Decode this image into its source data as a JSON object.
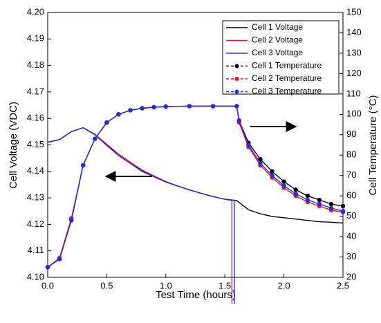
{
  "chart_data": {
    "type": "line",
    "xlabel": "Test Time (hours)",
    "ylabel": "Cell Voltage (VDC)",
    "y2label": "Cell Temperature (°C)",
    "xlim": [
      0,
      2.5
    ],
    "ylim": [
      4.1,
      4.2
    ],
    "y2lim": [
      20,
      150
    ],
    "xticks": [
      {
        "value": 0,
        "label": "0.0"
      },
      {
        "value": 0.5,
        "label": "0.5"
      },
      {
        "value": 1,
        "label": "1.0"
      },
      {
        "value": 1.5,
        "label": "1.5"
      },
      {
        "value": 2,
        "label": "2.0"
      },
      {
        "value": 2.5,
        "label": "2.5"
      }
    ],
    "yticks": [
      {
        "value": 4.1,
        "label": "4.10"
      },
      4.11,
      4.12,
      4.13,
      4.14,
      4.15,
      4.16,
      4.17,
      4.18,
      4.19,
      {
        "value": 4.2,
        "label": "4.20"
      }
    ],
    "y2ticks": [
      20,
      30,
      40,
      50,
      60,
      70,
      80,
      90,
      100,
      110,
      120,
      130,
      140,
      150
    ],
    "legend": "upper right",
    "series": [
      {
        "name": "Cell 1 Voltage",
        "color": "#000000",
        "axis": "y",
        "markers": false,
        "x": [
          0,
          0.1,
          0.2,
          0.3,
          0.4,
          0.5,
          0.6,
          0.7,
          0.8,
          0.9,
          1.0,
          1.1,
          1.2,
          1.3,
          1.4,
          1.5,
          1.6,
          1.7,
          1.8,
          1.9,
          2.0,
          2.1,
          2.2,
          2.3,
          2.4,
          2.5
        ],
        "values": [
          4.151,
          4.152,
          4.155,
          4.1565,
          4.154,
          4.15,
          4.146,
          4.143,
          4.14,
          4.138,
          4.136,
          4.1345,
          4.133,
          4.1317,
          4.1305,
          4.1295,
          4.129,
          4.1255,
          4.124,
          4.123,
          4.1225,
          4.122,
          4.1215,
          4.121,
          4.1208,
          4.1205
        ]
      },
      {
        "name": "Cell 2 Voltage",
        "color": "#e8141c",
        "axis": "y",
        "markers": false,
        "x": [
          0,
          0.1,
          0.2,
          0.3,
          0.4,
          0.5,
          0.6,
          0.7,
          0.8,
          0.9,
          1.0,
          1.1,
          1.2,
          1.3,
          1.4,
          1.5,
          1.56,
          1.56
        ],
        "values": [
          4.151,
          4.152,
          4.155,
          4.1565,
          4.154,
          4.1503,
          4.1465,
          4.1435,
          4.1405,
          4.1383,
          4.1362,
          4.1345,
          4.133,
          4.1317,
          4.1305,
          4.1295,
          4.129,
          4.09
        ]
      },
      {
        "name": "Cell 3 Voltage",
        "color": "#1f2ee0",
        "axis": "y",
        "markers": false,
        "x": [
          0,
          0.1,
          0.2,
          0.3,
          0.4,
          0.5,
          0.6,
          0.7,
          0.8,
          0.9,
          1.0,
          1.1,
          1.2,
          1.3,
          1.4,
          1.5,
          1.58,
          1.58
        ],
        "values": [
          4.151,
          4.152,
          4.155,
          4.1565,
          4.1538,
          4.1498,
          4.146,
          4.143,
          4.1402,
          4.138,
          4.136,
          4.1345,
          4.133,
          4.1317,
          4.1305,
          4.1295,
          4.129,
          4.09
        ]
      },
      {
        "name": "Cell 1 Temperature",
        "color": "#000000",
        "axis": "y2",
        "markers": true,
        "x": [
          0,
          0.1,
          0.2,
          0.3,
          0.4,
          0.5,
          0.6,
          0.7,
          0.8,
          0.9,
          1.0,
          1.2,
          1.4,
          1.6,
          1.62,
          1.7,
          1.8,
          1.9,
          2.0,
          2.1,
          2.2,
          2.3,
          2.4,
          2.5
        ],
        "values": [
          25,
          29,
          48,
          75,
          88,
          96,
          100,
          102,
          103,
          103.5,
          103.8,
          104,
          104,
          104,
          97,
          86,
          78,
          72,
          67,
          63,
          60,
          58,
          56,
          55
        ]
      },
      {
        "name": "Cell 2 Temperature",
        "color": "#e8141c",
        "axis": "y2",
        "markers": true,
        "x": [
          0,
          0.1,
          0.2,
          0.3,
          0.4,
          0.5,
          0.6,
          0.7,
          0.8,
          0.9,
          1.0,
          1.2,
          1.4,
          1.6,
          1.62,
          1.7,
          1.8,
          1.9,
          2.0,
          2.1,
          2.2,
          2.3,
          2.4,
          2.5
        ],
        "values": [
          25,
          29.5,
          49,
          75,
          88,
          96,
          100,
          102,
          103,
          103.5,
          103.8,
          104,
          104,
          104,
          96,
          84,
          75,
          69,
          64,
          60,
          57,
          55,
          53,
          52
        ]
      },
      {
        "name": "Cell 3 Temperature",
        "color": "#1f2ee0",
        "axis": "y2",
        "markers": true,
        "x": [
          0,
          0.1,
          0.2,
          0.3,
          0.4,
          0.5,
          0.6,
          0.7,
          0.8,
          0.9,
          1.0,
          1.2,
          1.4,
          1.6,
          1.62,
          1.7,
          1.8,
          1.9,
          2.0,
          2.1,
          2.2,
          2.3,
          2.4,
          2.5
        ],
        "values": [
          25,
          29,
          48,
          75,
          88,
          96,
          100,
          102,
          103,
          103.5,
          103.8,
          104,
          104,
          104,
          97,
          85,
          76,
          70,
          65,
          61,
          58,
          56,
          54,
          52.5
        ]
      }
    ]
  }
}
